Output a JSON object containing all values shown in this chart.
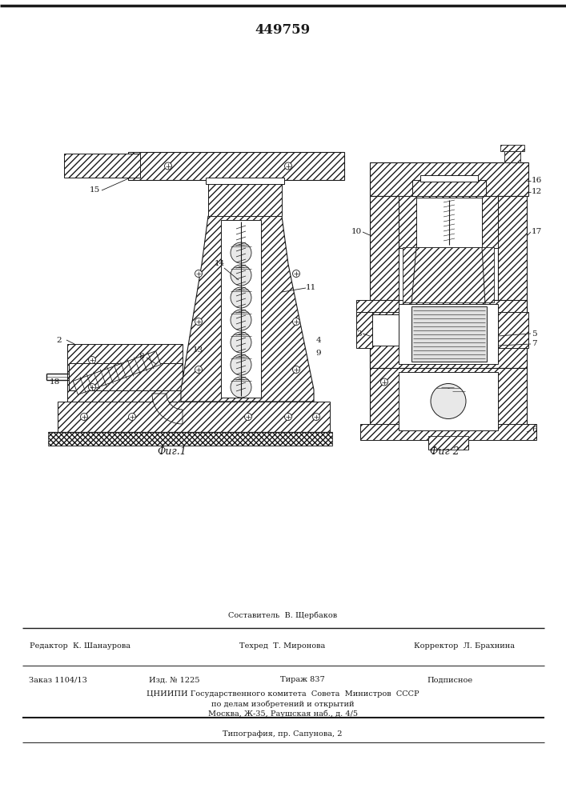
{
  "title": "449759",
  "fig1_caption": "Фиг.1",
  "fig2_caption": "Фиг 2",
  "composer_line": "Составитель  В. Щербаков",
  "editor_line": "Редактор  К. Шанаурова",
  "techred_line": "Техред  Т. Миронова",
  "corrector_line": "Корректор  Л. Брахнина",
  "order_line": "Заказ 1104/13",
  "izd_line": "Изд. № 1225",
  "tirazh_line": "Тираж 837",
  "podpisnoe_line": "Подписное",
  "cniiipi_line": "ЦНИИПИ Государственного комитета  Совета  Министров  СССР",
  "cniiipi_line2": "по делам изобретений и открытий",
  "cniiipi_line3": "Москва, Ж-35, Раушская наб., д. 4/5",
  "tipografia_line": "Типография, пр. Сапунова, 2",
  "bg_color": "#ffffff",
  "line_color": "#1a1a1a"
}
